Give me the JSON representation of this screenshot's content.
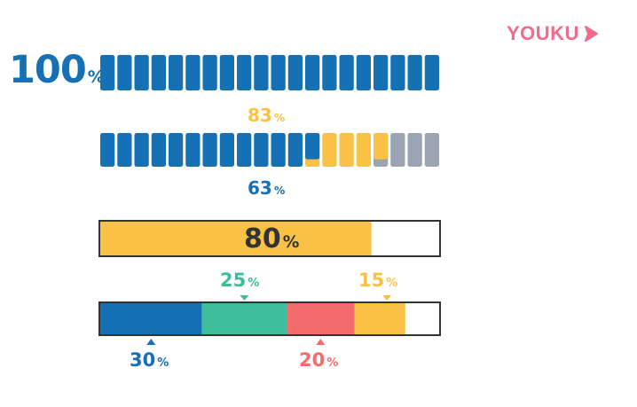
{
  "brand": {
    "logo_text": "YOUKU",
    "logo_color": "#f06c8c"
  },
  "colors": {
    "blue": "#1670b4",
    "yellow": "#f9c246",
    "gray": "#9ba4b2",
    "teal": "#3dbd9b",
    "red": "#f46b6b",
    "white": "#ffffff",
    "dark": "#333333"
  },
  "chart_data": [
    {
      "type": "bar",
      "subtype": "segmented-full",
      "segments": 20,
      "value": 100,
      "label_value": "100",
      "label_unit": "%"
    },
    {
      "type": "bar",
      "subtype": "segmented-stacked",
      "segments": 20,
      "series": [
        {
          "name": "63%",
          "value": 63,
          "color": "blue",
          "label_value": "63",
          "label_unit": "%"
        },
        {
          "name": "83%",
          "value": 83,
          "color": "yellow",
          "label_value": "83",
          "label_unit": "%"
        }
      ],
      "remainder_color": "gray"
    },
    {
      "type": "bar",
      "subtype": "progress",
      "value": 80,
      "max": 100,
      "color": "yellow",
      "label_value": "80",
      "label_unit": "%"
    },
    {
      "type": "bar",
      "subtype": "stacked-100",
      "series": [
        {
          "name": "30%",
          "value": 30,
          "color": "blue",
          "label_value": "30",
          "label_unit": "%",
          "label_position": "below"
        },
        {
          "name": "25%",
          "value": 25,
          "color": "teal",
          "label_value": "25",
          "label_unit": "%",
          "label_position": "above"
        },
        {
          "name": "20%",
          "value": 20,
          "color": "red",
          "label_value": "20",
          "label_unit": "%",
          "label_position": "below"
        },
        {
          "name": "15%",
          "value": 15,
          "color": "yellow",
          "label_value": "15",
          "label_unit": "%",
          "label_position": "above"
        }
      ],
      "remainder_color": "white"
    }
  ]
}
